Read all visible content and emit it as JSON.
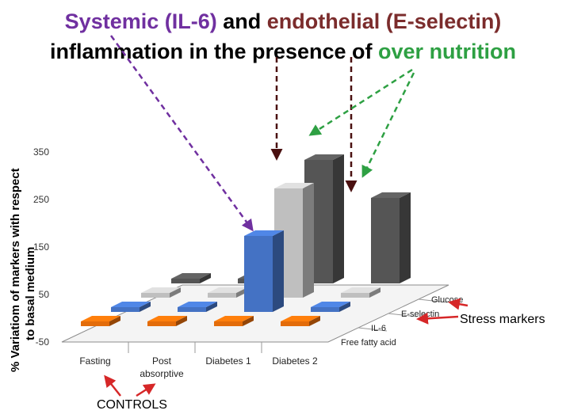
{
  "title": {
    "part1": "Systemic (IL-6)",
    "part2": " and ",
    "part3": "endothelial (E-selectin)",
    "part4": "inflammation in the presence of ",
    "part5": "over nutrition"
  },
  "annotations": {
    "stress_markers": "Stress markers",
    "controls": "CONTROLS"
  },
  "colors": {
    "il6": "#7030a0",
    "eselectin": "#6b1d1d",
    "overnutrition": "#2ea043",
    "annotation_red": "#d62728"
  },
  "chart_data": {
    "type": "bar",
    "variant": "3d-column",
    "ylabel": "% Variatiom of markers with respect to basal medium",
    "yticks": [
      "350",
      "250",
      "150",
      "50",
      "-50"
    ],
    "ylim": [
      -50,
      350
    ],
    "categories": [
      "Fasting",
      "Post absorptive",
      "Diabetes 1",
      "Diabetes 2"
    ],
    "series": [
      {
        "name": "Free fatty acid",
        "color": "#e36c0a",
        "values": [
          10,
          10,
          10,
          0
        ]
      },
      {
        "name": "IL-6",
        "color": "#4472c4",
        "values": [
          0,
          -10,
          190,
          5
        ]
      },
      {
        "name": "E-selectin",
        "color": "#bfbfbf",
        "values": [
          10,
          40,
          260,
          20
        ]
      },
      {
        "name": "Glucose",
        "color": "#555555",
        "values": [
          0,
          10,
          290,
          210
        ]
      }
    ],
    "grid": true
  }
}
